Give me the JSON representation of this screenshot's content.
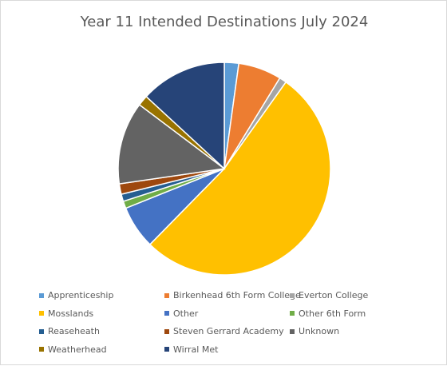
{
  "chart_data": {
    "type": "pie",
    "title": "Year 11 Intended Destinations July 2024",
    "legend_position": "bottom",
    "slices": [
      {
        "label": "Apprenticeship",
        "value": 2.2,
        "color": "#5b9bd5"
      },
      {
        "label": "Birkenhead 6th Form College",
        "value": 6.6,
        "color": "#ed7d31"
      },
      {
        "label": "Everton College",
        "value": 1.1,
        "color": "#a5a5a5"
      },
      {
        "label": "Mosslands",
        "value": 52.7,
        "color": "#ffc000"
      },
      {
        "label": "Other",
        "value": 6.6,
        "color": "#4472c4"
      },
      {
        "label": "Other 6th Form",
        "value": 1.1,
        "color": "#70ad47"
      },
      {
        "label": "Reaseheath",
        "value": 1.1,
        "color": "#255e91"
      },
      {
        "label": "Steven Gerrard Academy",
        "value": 1.6,
        "color": "#9e480e"
      },
      {
        "label": "Unknown",
        "value": 12.6,
        "color": "#636363"
      },
      {
        "label": "Weatherhead",
        "value": 1.6,
        "color": "#997300"
      },
      {
        "label": "Wirral Met",
        "value": 13.2,
        "color": "#264478"
      }
    ]
  }
}
